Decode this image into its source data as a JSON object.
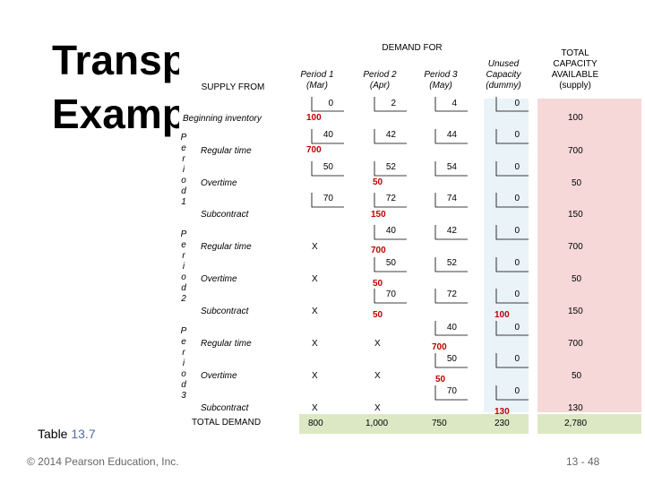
{
  "title_line1": "Transp",
  "title_line2": "Examp",
  "header": {
    "demand_for": "DEMAND FOR",
    "supply_from": "SUPPLY FROM",
    "period1": "Period 1",
    "period1_sub": "(Mar)",
    "period2": "Period 2",
    "period2_sub": "(Apr)",
    "period3": "Period 3",
    "period3_sub": "(May)",
    "unused": "Unused",
    "capacity": "Capacity",
    "dummy": "(dummy)",
    "total_capacity": "TOTAL",
    "total_capacity2": "CAPACITY",
    "total_capacity3": "AVAILABLE",
    "total_capacity4": "(supply)"
  },
  "rows": {
    "beginning": "Beginning inventory",
    "regular": "Regular time",
    "overtime": "Overtime",
    "subcontract": "Subcontract",
    "total_demand": "TOTAL DEMAND"
  },
  "period_labels": {
    "p1": [
      "P",
      "e",
      "r",
      "i",
      "o",
      "d",
      "1"
    ],
    "p2": [
      "P",
      "e",
      "r",
      "i",
      "o",
      "d",
      "2"
    ],
    "p3": [
      "P",
      "e",
      "r",
      "i",
      "o",
      "d",
      "3"
    ]
  },
  "costs": {
    "r0": [
      "0",
      "2",
      "4",
      "0"
    ],
    "r1": [
      "40",
      "42",
      "44",
      "0"
    ],
    "r2": [
      "50",
      "52",
      "54",
      "0"
    ],
    "r3": [
      "70",
      "72",
      "74",
      "0"
    ],
    "r4": [
      "40",
      "42",
      "0"
    ],
    "r5": [
      "50",
      "52",
      "0"
    ],
    "r6": [
      "70",
      "72",
      "0"
    ],
    "r7": [
      "40",
      "0"
    ],
    "r8": [
      "50",
      "0"
    ],
    "r9": [
      "70",
      "0"
    ]
  },
  "allocations": {
    "a0": "100",
    "a1": "700",
    "a2": "50",
    "a3": "150",
    "a4": "700",
    "a5": "50",
    "a6": "50",
    "a7": "100",
    "a8": "700",
    "a9": "50",
    "a10": "130"
  },
  "x_mark": "X",
  "supply": [
    "100",
    "700",
    "50",
    "150",
    "700",
    "50",
    "150",
    "700",
    "50",
    "130"
  ],
  "demand": [
    "800",
    "1,000",
    "750",
    "230"
  ],
  "grand_total": "2,780",
  "table_label": "Table",
  "table_number": "13.7",
  "copyright": "© 2014 Pearson Education, Inc.",
  "slide_number": "13 - 48"
}
